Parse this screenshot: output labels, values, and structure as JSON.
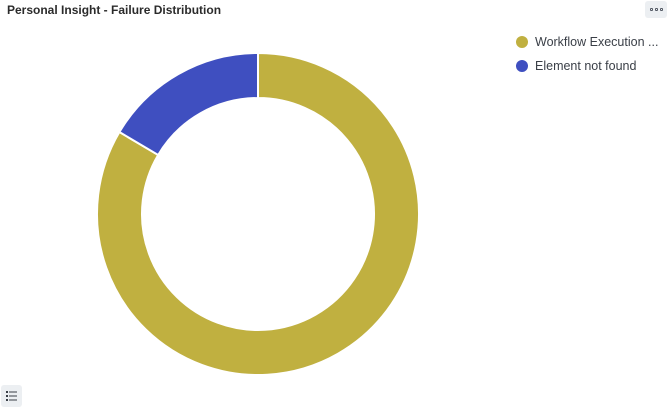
{
  "panel": {
    "title": "Personal Insight - Failure Distribution",
    "menu_icon": "more-options-icon",
    "legend_toggle_icon": "list-icon"
  },
  "chart_data": {
    "type": "pie",
    "variant": "donut",
    "title": "Personal Insight - Failure Distribution",
    "legend_position": "top-right",
    "series": [
      {
        "name": "Workflow Execution ...",
        "value": 83.5,
        "color": "#c0b040"
      },
      {
        "name": "Element not found",
        "value": 16.5,
        "color": "#3f4fc0"
      }
    ]
  }
}
